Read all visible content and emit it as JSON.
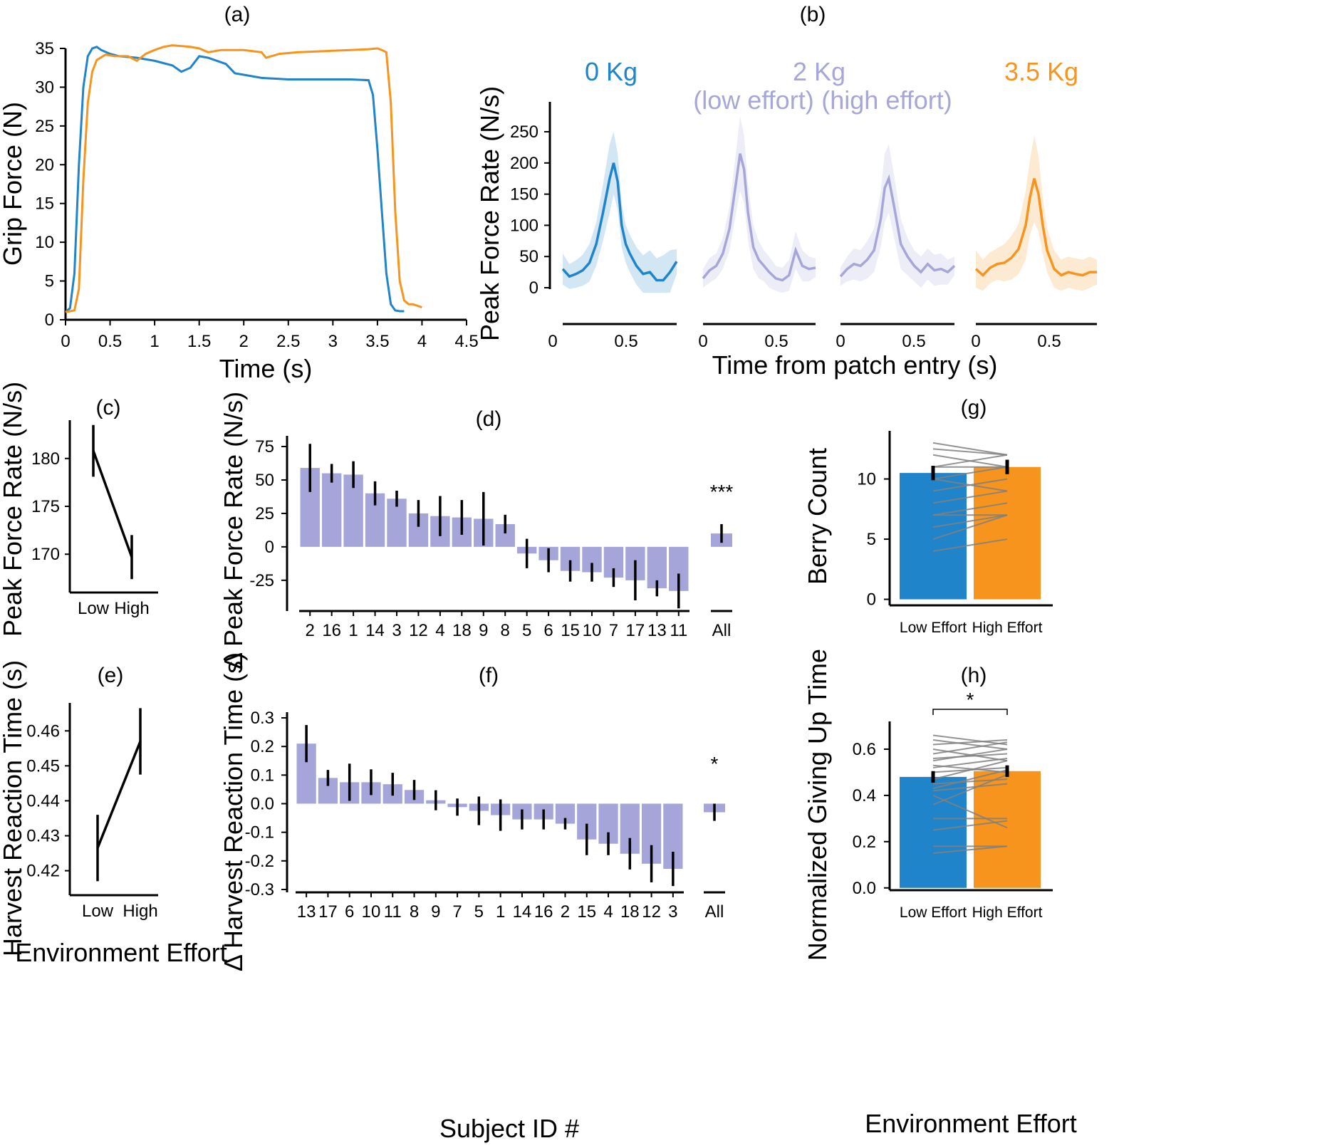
{
  "colors": {
    "blue": "#1f84c9",
    "orange": "#f7941d",
    "lavender": "#a5a5da",
    "lavender_line": "#a6a6d8",
    "black": "#000000",
    "gray": "#808080"
  },
  "chart_data": [
    {
      "id": "a",
      "panel_label": "(a)",
      "type": "line",
      "xlabel": "Time (s)",
      "ylabel": "Grip Force (N)",
      "xlim": [
        0,
        4.5
      ],
      "ylim": [
        0,
        35
      ],
      "xticks": [
        "0",
        "0.5",
        "1",
        "1.5",
        "2",
        "2.5",
        "3",
        "3.5",
        "4",
        "4.5"
      ],
      "yticks": [
        "0",
        "5",
        "10",
        "15",
        "20",
        "25",
        "30",
        "35"
      ],
      "series": [
        {
          "color": "blue",
          "x": [
            0,
            0.05,
            0.1,
            0.15,
            0.2,
            0.25,
            0.3,
            0.35,
            0.4,
            0.5,
            0.6,
            0.8,
            1.0,
            1.2,
            1.3,
            1.4,
            1.5,
            1.6,
            1.8,
            1.9,
            2.0,
            2.2,
            2.5,
            2.8,
            3.0,
            3.2,
            3.4,
            3.45,
            3.5,
            3.55,
            3.6,
            3.65,
            3.7,
            3.75,
            3.8
          ],
          "y": [
            1,
            1.5,
            6,
            20,
            30,
            34,
            35,
            35.2,
            34.8,
            34.3,
            34.0,
            33.8,
            33.4,
            32.8,
            32.0,
            32.5,
            34.0,
            33.8,
            33.0,
            31.8,
            31.6,
            31.2,
            31.0,
            31.0,
            31.0,
            31.0,
            30.9,
            29,
            22,
            14,
            6,
            2,
            1.2,
            1.1,
            1.1
          ]
        },
        {
          "color": "orange",
          "x": [
            0,
            0.1,
            0.15,
            0.2,
            0.25,
            0.3,
            0.35,
            0.45,
            0.55,
            0.7,
            0.8,
            0.9,
            1.0,
            1.1,
            1.2,
            1.4,
            1.5,
            1.6,
            1.75,
            2.0,
            2.2,
            2.25,
            2.4,
            2.6,
            2.8,
            3.0,
            3.2,
            3.4,
            3.5,
            3.55,
            3.6,
            3.65,
            3.7,
            3.75,
            3.8,
            3.85,
            3.9,
            4.0
          ],
          "y": [
            1,
            1.2,
            4,
            18,
            28,
            32,
            33.5,
            34.2,
            34.0,
            34.0,
            33.4,
            34.3,
            34.8,
            35.2,
            35.4,
            35.2,
            35.0,
            34.5,
            34.8,
            34.8,
            34.5,
            33.8,
            34.3,
            34.5,
            34.6,
            34.7,
            34.8,
            34.9,
            35.0,
            34.8,
            34.5,
            28,
            14,
            5,
            2.5,
            2.0,
            2.0,
            1.6
          ]
        }
      ]
    },
    {
      "id": "b",
      "panel_label": "(b)",
      "type": "line",
      "xlabel": "Time from patch entry (s)",
      "ylabel": "Peak Force Rate (N/s)",
      "ylim": [
        -10,
        260
      ],
      "yticks": [
        "0",
        "50",
        "100",
        "150",
        "200",
        "250"
      ],
      "xticks": [
        "0",
        "0.5"
      ],
      "subplots": [
        {
          "title": "0 Kg",
          "subtitle": "",
          "color": "blue",
          "x": [
            0.0,
            0.05,
            0.1,
            0.15,
            0.2,
            0.25,
            0.3,
            0.35,
            0.38,
            0.41,
            0.44,
            0.47,
            0.5,
            0.55,
            0.6,
            0.65,
            0.7,
            0.75,
            0.8,
            0.85
          ],
          "y": [
            30,
            18,
            22,
            28,
            40,
            70,
            120,
            175,
            200,
            170,
            100,
            70,
            55,
            35,
            22,
            25,
            12,
            12,
            25,
            42
          ],
          "band": [
            25,
            20,
            22,
            25,
            30,
            35,
            45,
            55,
            50,
            45,
            35,
            30,
            30,
            30,
            30,
            35,
            35,
            40,
            35,
            20
          ]
        },
        {
          "title": "2 Kg",
          "subtitle": "(low effort)",
          "color": "lavender_line",
          "x": [
            0.0,
            0.05,
            0.1,
            0.15,
            0.2,
            0.25,
            0.28,
            0.31,
            0.34,
            0.38,
            0.42,
            0.46,
            0.5,
            0.55,
            0.6,
            0.65,
            0.7,
            0.75,
            0.8,
            0.85
          ],
          "y": [
            15,
            28,
            35,
            55,
            95,
            170,
            215,
            190,
            120,
            65,
            45,
            35,
            25,
            15,
            12,
            20,
            60,
            35,
            30,
            32
          ],
          "band": [
            15,
            20,
            20,
            25,
            35,
            50,
            60,
            55,
            45,
            35,
            30,
            25,
            25,
            20,
            20,
            25,
            30,
            25,
            20,
            15
          ]
        },
        {
          "title": "",
          "subtitle": "(high effort)",
          "color": "lavender_line",
          "x": [
            0.0,
            0.05,
            0.1,
            0.15,
            0.2,
            0.25,
            0.3,
            0.33,
            0.36,
            0.4,
            0.45,
            0.5,
            0.55,
            0.6,
            0.65,
            0.7,
            0.75,
            0.8,
            0.85
          ],
          "y": [
            18,
            30,
            38,
            35,
            45,
            60,
            110,
            160,
            175,
            130,
            70,
            50,
            35,
            25,
            38,
            28,
            30,
            25,
            35
          ],
          "band": [
            15,
            20,
            25,
            25,
            30,
            35,
            45,
            55,
            55,
            50,
            40,
            30,
            25,
            25,
            25,
            25,
            25,
            20,
            15
          ]
        },
        {
          "title": "3.5 Kg",
          "subtitle": "",
          "color": "orange",
          "x": [
            0.0,
            0.05,
            0.1,
            0.15,
            0.2,
            0.25,
            0.3,
            0.35,
            0.38,
            0.41,
            0.44,
            0.47,
            0.5,
            0.55,
            0.6,
            0.65,
            0.7,
            0.75,
            0.8,
            0.85
          ],
          "y": [
            30,
            20,
            32,
            38,
            40,
            48,
            62,
            100,
            145,
            175,
            150,
            100,
            60,
            30,
            20,
            25,
            22,
            20,
            25,
            25
          ],
          "band": [
            30,
            25,
            25,
            25,
            30,
            35,
            40,
            55,
            60,
            70,
            60,
            45,
            35,
            30,
            25,
            25,
            25,
            25,
            25,
            20
          ]
        }
      ]
    },
    {
      "id": "c",
      "panel_label": "(c)",
      "type": "line",
      "ylabel": "Peak Force Rate (N/s)",
      "categories": [
        "Low",
        "High"
      ],
      "values": [
        180.8,
        169.7
      ],
      "errors": [
        2.7,
        2.3
      ],
      "ylim": [
        166,
        184
      ],
      "yticks": [
        170,
        175,
        180
      ]
    },
    {
      "id": "d",
      "panel_label": "(d)",
      "type": "bar",
      "ylabel": "Δ Peak Force Rate (N/s)",
      "categories": [
        "2",
        "16",
        "1",
        "14",
        "3",
        "12",
        "4",
        "18",
        "9",
        "8",
        "5",
        "6",
        "15",
        "10",
        "7",
        "17",
        "13",
        "11"
      ],
      "values": [
        59,
        55,
        54,
        40,
        36,
        25,
        23,
        22,
        21,
        17,
        -5,
        -10,
        -18,
        -19,
        -23,
        -25,
        -31,
        -33
      ],
      "errors": [
        18,
        7,
        10,
        9,
        6,
        10,
        15,
        13,
        20,
        7,
        11,
        9,
        8,
        7,
        7,
        15,
        6,
        13
      ],
      "all_category": "All",
      "all_value": 10,
      "all_error": 7,
      "significance": "***",
      "ylim": [
        -48,
        83
      ],
      "yticks": [
        "75",
        "50",
        "25",
        "0",
        "-25"
      ]
    },
    {
      "id": "e",
      "panel_label": "(e)",
      "type": "line",
      "ylabel": "Harvest Reaction Time (s)",
      "xlabel": "Environment Effort",
      "categories": [
        "Low",
        "High"
      ],
      "values": [
        0.4265,
        0.457
      ],
      "errors": [
        0.0095,
        0.0095
      ],
      "ylim": [
        0.413,
        0.468
      ],
      "yticks": [
        "0.42",
        "0.43",
        "0.44",
        "0.45",
        "0.46"
      ]
    },
    {
      "id": "f",
      "panel_label": "(f)",
      "type": "bar",
      "ylabel": "Δ Harvest Reaction Time (s)",
      "xlabel": "Subject ID #",
      "categories": [
        "13",
        "17",
        "6",
        "10",
        "11",
        "8",
        "9",
        "7",
        "5",
        "1",
        "14",
        "16",
        "2",
        "15",
        "4",
        "18",
        "12",
        "3"
      ],
      "values": [
        0.21,
        0.09,
        0.075,
        0.075,
        0.068,
        0.048,
        0.012,
        -0.012,
        -0.025,
        -0.04,
        -0.055,
        -0.055,
        -0.07,
        -0.125,
        -0.14,
        -0.175,
        -0.21,
        -0.228
      ],
      "errors": [
        0.065,
        0.028,
        0.065,
        0.045,
        0.04,
        0.035,
        0.035,
        0.03,
        0.05,
        0.055,
        0.035,
        0.035,
        0.02,
        0.055,
        0.04,
        0.055,
        0.065,
        0.06
      ],
      "all_category": "All",
      "all_value": -0.03,
      "all_error": 0.03,
      "significance": "*",
      "ylim": [
        -0.31,
        0.32
      ],
      "yticks": [
        "0.3",
        "0.2",
        "0.1",
        "0.0",
        "-0.1",
        "-0.2",
        "-0.3"
      ]
    },
    {
      "id": "g",
      "panel_label": "(g)",
      "type": "bar",
      "ylabel": "Berry Count",
      "categories": [
        "Low Effort",
        "High Effort"
      ],
      "values": [
        10.5,
        11.0
      ],
      "errors": [
        0.6,
        0.6
      ],
      "ylim": [
        -0.5,
        14
      ],
      "yticks": [
        "0",
        "5",
        "10"
      ],
      "subject_lines": [
        [
          13,
          12
        ],
        [
          12.5,
          12
        ],
        [
          12,
          11
        ],
        [
          11,
          12
        ],
        [
          11,
          11
        ],
        [
          10,
          11
        ],
        [
          10,
          9
        ],
        [
          9,
          10
        ],
        [
          8,
          9
        ],
        [
          7,
          8
        ],
        [
          7,
          7
        ],
        [
          6,
          7
        ],
        [
          5,
          7
        ],
        [
          4,
          5
        ]
      ]
    },
    {
      "id": "h",
      "panel_label": "(h)",
      "type": "bar",
      "ylabel": "Normalized Giving Up Time",
      "xlabel": "Environment Effort",
      "categories": [
        "Low Effort",
        "High Effort"
      ],
      "values": [
        0.48,
        0.505
      ],
      "errors": [
        0.025,
        0.025
      ],
      "significance": "*",
      "ylim": [
        -0.01,
        0.72
      ],
      "yticks": [
        "0.0",
        "0.2",
        "0.4",
        "0.6"
      ],
      "subject_lines": [
        [
          0.66,
          0.62
        ],
        [
          0.64,
          0.6
        ],
        [
          0.62,
          0.64
        ],
        [
          0.6,
          0.55
        ],
        [
          0.58,
          0.63
        ],
        [
          0.56,
          0.58
        ],
        [
          0.55,
          0.6
        ],
        [
          0.53,
          0.5
        ],
        [
          0.52,
          0.56
        ],
        [
          0.5,
          0.52
        ],
        [
          0.47,
          0.55
        ],
        [
          0.45,
          0.47
        ],
        [
          0.43,
          0.51
        ],
        [
          0.42,
          0.45
        ],
        [
          0.4,
          0.26
        ],
        [
          0.36,
          0.49
        ],
        [
          0.3,
          0.3
        ],
        [
          0.25,
          0.29
        ],
        [
          0.18,
          0.18
        ],
        [
          0.15,
          0.18
        ]
      ]
    }
  ]
}
